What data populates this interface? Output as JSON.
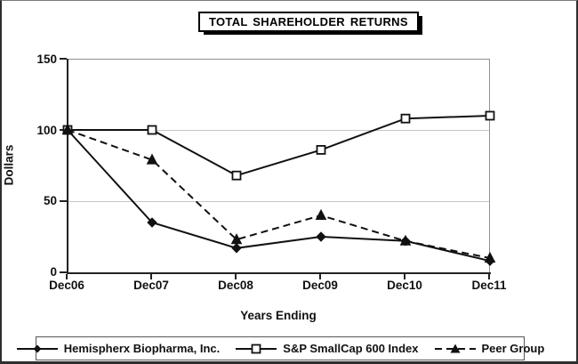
{
  "chart_data": {
    "type": "line",
    "title": "TOTAL SHAREHOLDER RETURNS",
    "x": [
      "Dec06",
      "Dec07",
      "Dec08",
      "Dec09",
      "Dec10",
      "Dec11"
    ],
    "xlabel": "Years Ending",
    "ylabel": "Dollars",
    "ylim": [
      0,
      150
    ],
    "yticks": [
      0,
      50,
      100,
      150
    ],
    "grid": true,
    "legend_position": "bottom",
    "series": [
      {
        "name": "Hemispherx Biopharma, Inc.",
        "marker": "diamond",
        "line_style": "solid",
        "values": [
          100,
          35,
          17,
          25,
          22,
          8
        ]
      },
      {
        "name": "S&P SmallCap 600 Index",
        "marker": "square-open",
        "line_style": "solid",
        "values": [
          100,
          100,
          68,
          86,
          108,
          110
        ]
      },
      {
        "name": "Peer Group",
        "marker": "triangle",
        "line_style": "dashed",
        "values": [
          100,
          79,
          23,
          40,
          22,
          10
        ]
      }
    ]
  },
  "colors": {
    "series": "#111111",
    "grid": "#c6c6c6",
    "axis": "#222222"
  }
}
